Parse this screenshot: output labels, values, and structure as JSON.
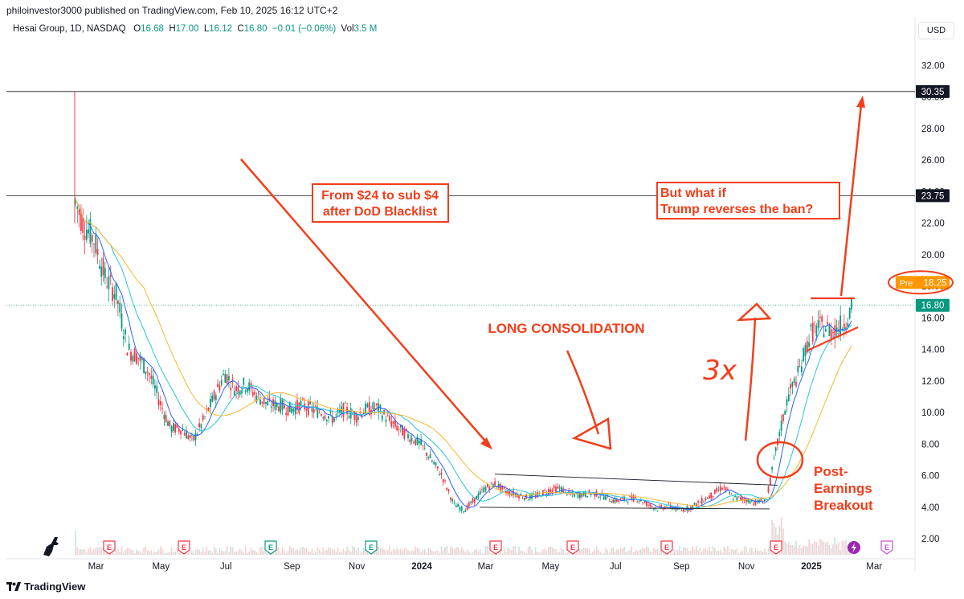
{
  "header": {
    "publisher_line": "philoinvestor3000 published on TradingView.com, Feb 10, 2025 16:12 UTC+2",
    "symbol": "Hesai Group, 1D, NASDAQ",
    "o_label": "O",
    "o_value": "16.68",
    "h_label": "H",
    "h_value": "17.00",
    "l_label": "L",
    "l_value": "16.12",
    "c_label": "C",
    "c_value": "16.80",
    "change": "−0.01 (−0.06%)",
    "vol_label": "Vol",
    "vol_value": "3.5 M"
  },
  "currency": "USD",
  "brand": "TradingView",
  "colors": {
    "up": "#089981",
    "down": "#f23645",
    "ma_blue": "#2962ff",
    "ma_teal": "#26c6da",
    "ma_orange": "#f7b731",
    "annotation": "#f23e1c",
    "pre_orange": "#ff9800"
  },
  "price_labels": {
    "high_line": "30.35",
    "mid_line": "23.75",
    "pre_tag": "Pre",
    "pre_value": "18.25",
    "last": "16.80"
  },
  "annotations": {
    "blacklist": [
      "From $24 to sub $4",
      "after DoD Blacklist"
    ],
    "consolidation": "LONG CONSOLIDATION",
    "ban": [
      "But what if",
      "Trump reverses the ban?"
    ],
    "times": "3x",
    "breakout": [
      "Post-",
      "Earnings",
      "Breakout"
    ]
  },
  "earnings_marker": "E",
  "chart_data": {
    "type": "candlestick",
    "title": "Hesai Group, 1D, NASDAQ",
    "y_ticks": [
      2,
      4,
      6,
      8,
      10,
      12,
      14,
      16,
      18,
      20,
      22,
      24,
      26,
      28,
      30,
      32
    ],
    "ylim": [
      1.5,
      33.5
    ],
    "x_ticks": [
      {
        "label": "Mar",
        "m": 2
      },
      {
        "label": "May",
        "m": 4
      },
      {
        "label": "Jul",
        "m": 6
      },
      {
        "label": "Sep",
        "m": 8
      },
      {
        "label": "Nov",
        "m": 10
      },
      {
        "label": "2024",
        "m": 12
      },
      {
        "label": "Mar",
        "m": 14
      },
      {
        "label": "May",
        "m": 16
      },
      {
        "label": "Jul",
        "m": 18
      },
      {
        "label": "Sep",
        "m": 20
      },
      {
        "label": "Nov",
        "m": 22
      },
      {
        "label": "2025",
        "m": 24
      },
      {
        "label": "Mar",
        "m": 26
      }
    ],
    "x_start": "2023-02-09",
    "x_end": "2025-02-10",
    "horizontal_lines": [
      30.35,
      23.75
    ],
    "last_price": 16.8,
    "premarket": 18.25,
    "close_path": [
      [
        "2023-02-09",
        23.5
      ],
      [
        "2023-02-17",
        22
      ],
      [
        "2023-02-27",
        21
      ],
      [
        "2023-03-10",
        18.5
      ],
      [
        "2023-03-20",
        17.5
      ],
      [
        "2023-03-31",
        14
      ],
      [
        "2023-04-10",
        13.5
      ],
      [
        "2023-04-20",
        12.5
      ],
      [
        "2023-05-01",
        10.5
      ],
      [
        "2023-05-10",
        9
      ],
      [
        "2023-05-20",
        9
      ],
      [
        "2023-05-31",
        8.2
      ],
      [
        "2023-06-10",
        9.5
      ],
      [
        "2023-06-20",
        11
      ],
      [
        "2023-06-30",
        12.5
      ],
      [
        "2023-07-10",
        11.5
      ],
      [
        "2023-07-20",
        11.8
      ],
      [
        "2023-07-31",
        11
      ],
      [
        "2023-08-10",
        10.5
      ],
      [
        "2023-08-20",
        10.5
      ],
      [
        "2023-08-31",
        10.2
      ],
      [
        "2023-09-10",
        10.5
      ],
      [
        "2023-09-20",
        10.2
      ],
      [
        "2023-09-30",
        10
      ],
      [
        "2023-10-10",
        9.6
      ],
      [
        "2023-10-20",
        10.2
      ],
      [
        "2023-10-31",
        9.8
      ],
      [
        "2023-11-10",
        10.2
      ],
      [
        "2023-11-20",
        10.3
      ],
      [
        "2023-11-30",
        9.6
      ],
      [
        "2023-12-10",
        9
      ],
      [
        "2023-12-20",
        8.5
      ],
      [
        "2023-12-31",
        8
      ],
      [
        "2024-01-10",
        7
      ],
      [
        "2024-01-20",
        6
      ],
      [
        "2024-01-31",
        4.2
      ],
      [
        "2024-02-10",
        3.8
      ],
      [
        "2024-02-20",
        4.5
      ],
      [
        "2024-02-29",
        5.2
      ],
      [
        "2024-03-10",
        5.5
      ],
      [
        "2024-03-20",
        5
      ],
      [
        "2024-03-31",
        4.8
      ],
      [
        "2024-04-10",
        4.6
      ],
      [
        "2024-04-20",
        4.8
      ],
      [
        "2024-04-30",
        5.1
      ],
      [
        "2024-05-10",
        5.2
      ],
      [
        "2024-05-20",
        4.8
      ],
      [
        "2024-05-31",
        4.8
      ],
      [
        "2024-06-10",
        4.9
      ],
      [
        "2024-06-20",
        4.7
      ],
      [
        "2024-06-30",
        4.4
      ],
      [
        "2024-07-10",
        4.5
      ],
      [
        "2024-07-20",
        4.6
      ],
      [
        "2024-07-31",
        4.2
      ],
      [
        "2024-08-10",
        3.9
      ],
      [
        "2024-08-20",
        4.1
      ],
      [
        "2024-08-31",
        3.8
      ],
      [
        "2024-09-10",
        4
      ],
      [
        "2024-09-20",
        4.4
      ],
      [
        "2024-09-30",
        4.8
      ],
      [
        "2024-10-10",
        5.3
      ],
      [
        "2024-10-20",
        4.6
      ],
      [
        "2024-10-31",
        4.5
      ],
      [
        "2024-11-10",
        4.3
      ],
      [
        "2024-11-20",
        4.5
      ],
      [
        "2024-11-30",
        8
      ],
      [
        "2024-12-10",
        11
      ],
      [
        "2024-12-20",
        12.5
      ],
      [
        "2024-12-31",
        15
      ],
      [
        "2025-01-10",
        15.5
      ],
      [
        "2025-01-20",
        15.2
      ],
      [
        "2025-01-31",
        15.6
      ],
      [
        "2025-02-10",
        16.8
      ]
    ]
  }
}
